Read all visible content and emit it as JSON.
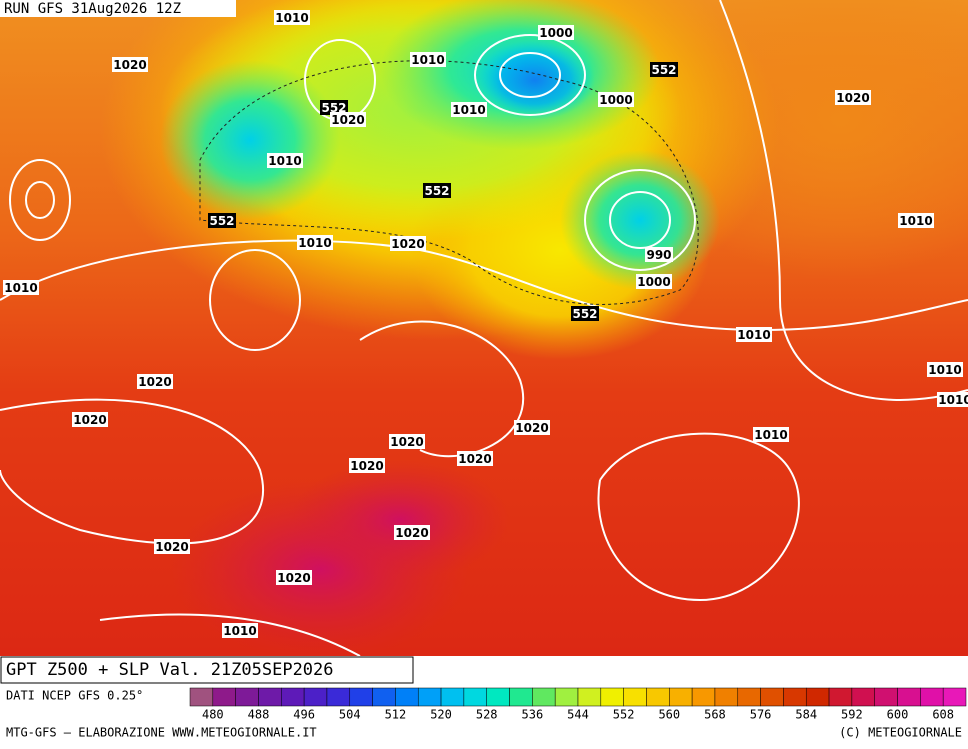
{
  "header": {
    "run": "RUN GFS 31Aug2026 12Z"
  },
  "map_labels": [
    "1010",
    "1020",
    "1010",
    "1000",
    "552",
    "552",
    "1020",
    "1010",
    "1000",
    "1020",
    "1010",
    "552",
    "552",
    "1010",
    "1010",
    "1020",
    "990",
    "1000",
    "1010",
    "552",
    "1010",
    "1020",
    "1010",
    "1010",
    "1020",
    "1020",
    "1010",
    "1020",
    "1020",
    "1020",
    "1020",
    "1020",
    "1020",
    "1010"
  ],
  "footer": {
    "title": "GPT Z500 + SLP Val. 21Z05SEP2026",
    "source": "DATI NCEP GFS 0.25°",
    "credit": "MTG-GFS — ELABORAZIONE WWW.METEOGIORNALE.IT",
    "copyright": "(C) METEOGIORNALE"
  },
  "colorbar": {
    "ticks": [
      480,
      488,
      496,
      504,
      512,
      520,
      528,
      536,
      544,
      552,
      560,
      568,
      576,
      584,
      592,
      600,
      608
    ],
    "colors": [
      "#a0527f",
      "#8e1a8a",
      "#7e1a98",
      "#6e1aa8",
      "#5e1ab8",
      "#4c20c8",
      "#3a2ad8",
      "#2040e8",
      "#1060f0",
      "#0080f8",
      "#00a0f8",
      "#00c0f0",
      "#00d8e0",
      "#00e8c0",
      "#20e890",
      "#60e860",
      "#a0f040",
      "#d0f020",
      "#f0f000",
      "#f8e000",
      "#f8c800",
      "#f8b000",
      "#f89800",
      "#f08000",
      "#e86800",
      "#e05000",
      "#d83800",
      "#d02800",
      "#d01830",
      "#d01050",
      "#d01070",
      "#d81090",
      "#e010a8",
      "#e818b8"
    ]
  }
}
